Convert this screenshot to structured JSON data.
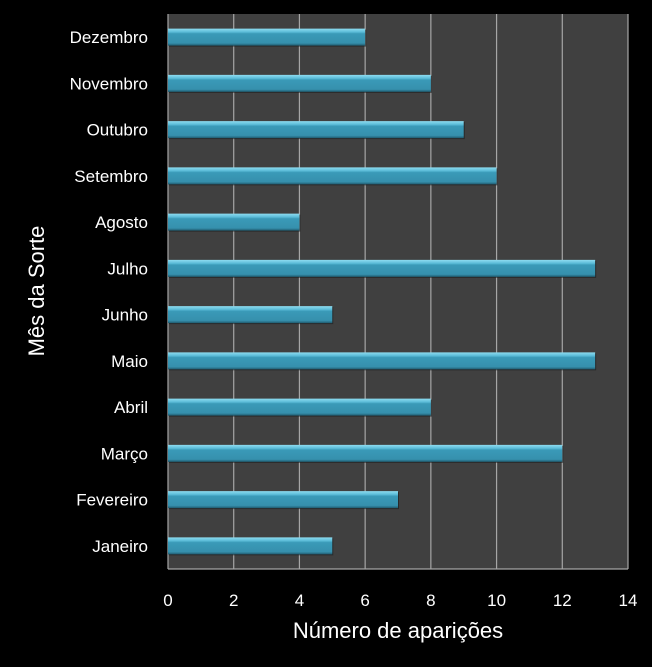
{
  "chart_data": {
    "type": "bar",
    "orientation": "horizontal",
    "title": "",
    "xlabel": "Número de aparições",
    "ylabel": "Mês da Sorte",
    "xlim": [
      0,
      14
    ],
    "xticks": [
      "0",
      "2",
      "4",
      "6",
      "8",
      "10",
      "12",
      "14"
    ],
    "categories": [
      "Janeiro",
      "Fevereiro",
      "Março",
      "Abril",
      "Maio",
      "Junho",
      "Julho",
      "Agosto",
      "Setembro",
      "Outubro",
      "Novembro",
      "Dezembro"
    ],
    "values": [
      5,
      7,
      12,
      8,
      13,
      5,
      13,
      4,
      10,
      9,
      8,
      6
    ],
    "grid": "vertical",
    "legend": "none",
    "colors": {
      "background": "#000000",
      "plot_area": "#404040",
      "bar": "#3a9ab8",
      "bar_highlight": "#7fd3ea",
      "gridline": "#a6a6a6",
      "text": "#ffffff"
    }
  }
}
